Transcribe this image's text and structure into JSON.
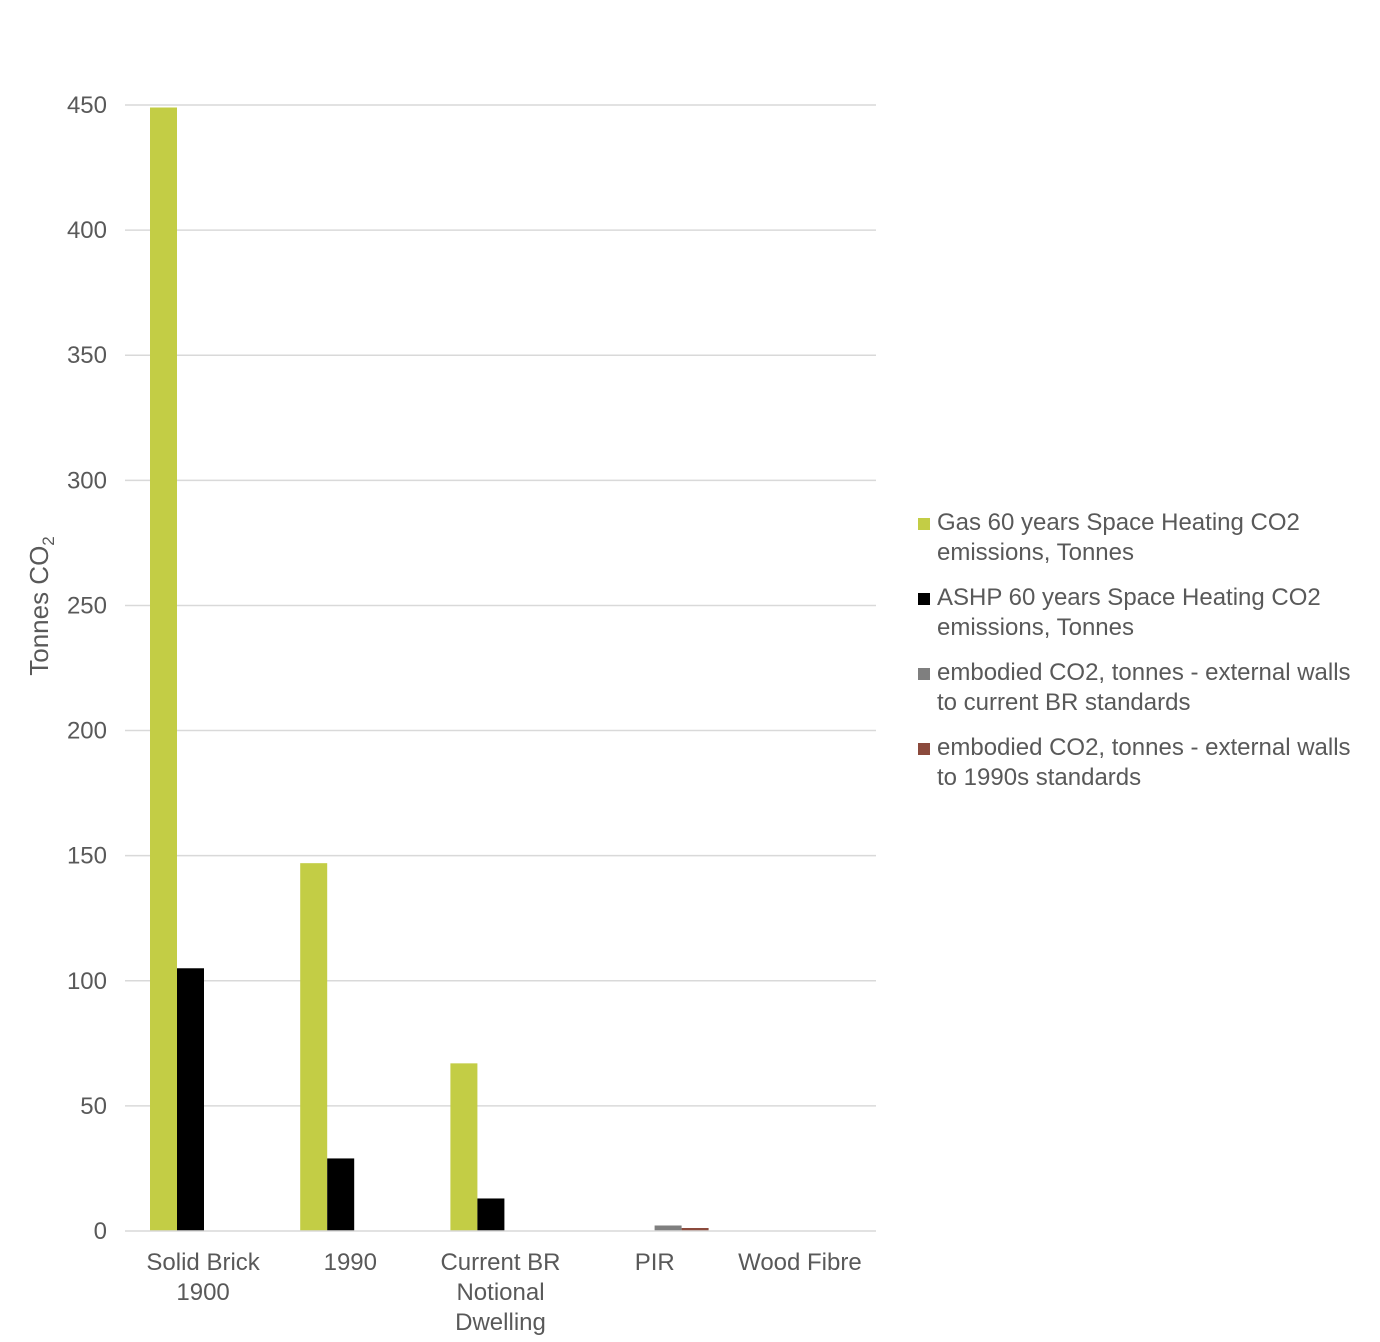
{
  "chart_data": {
    "type": "bar",
    "title": "",
    "xlabel": "",
    "ylabel_main": "Tonnes CO",
    "ylabel_sub": "2",
    "ylim": [
      0,
      450
    ],
    "yticks": [
      0,
      50,
      100,
      150,
      200,
      250,
      300,
      350,
      400,
      450
    ],
    "grid": true,
    "legend_position": "right",
    "categories": [
      [
        "Solid Brick",
        "1900"
      ],
      [
        "1990"
      ],
      [
        "Current BR",
        "Notional",
        "Dwelling"
      ],
      [
        "PIR"
      ],
      [
        "Wood Fibre"
      ]
    ],
    "series": [
      {
        "name": "Gas 60 years Space Heating CO2 emissions, Tonnes",
        "color": "#c3cd45",
        "values": [
          449,
          147,
          67,
          0,
          0
        ]
      },
      {
        "name": "ASHP 60 years Space Heating CO2 emissions, Tonnes",
        "color": "#000000",
        "values": [
          105,
          29,
          13,
          0,
          0
        ]
      },
      {
        "name": "embodied CO2, tonnes - external walls to current BR standards",
        "color": "#7f7f7f",
        "values": [
          0,
          0,
          0,
          2.2,
          0
        ]
      },
      {
        "name": "embodied CO2, tonnes - external walls to 1990s standards",
        "color": "#8b4a3c",
        "values": [
          0,
          0,
          0,
          1.2,
          0
        ]
      }
    ]
  }
}
